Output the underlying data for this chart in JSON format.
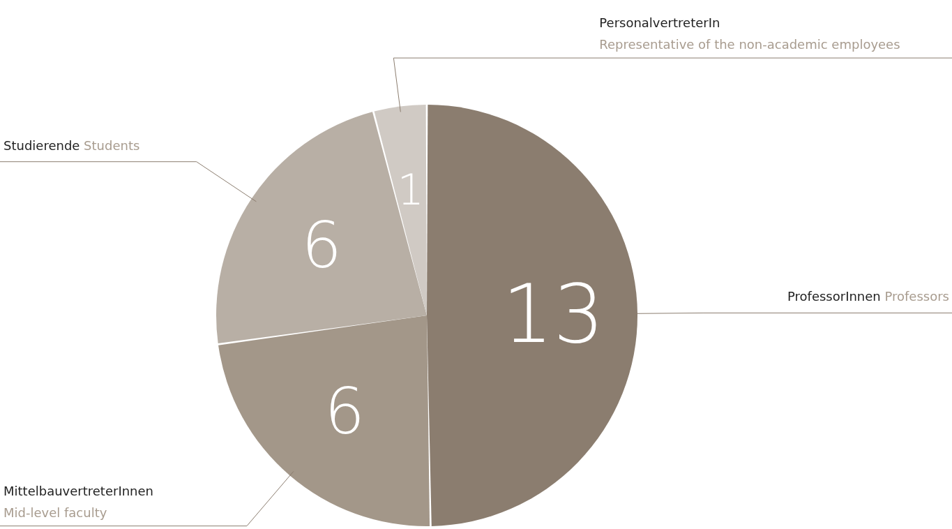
{
  "chart_data": {
    "type": "pie",
    "categories": [
      "ProfessorInnen\nProfessors",
      "MittelbauvertreterInnen\nMid-level faculty",
      "Studierende\nStudents",
      "PersonalvertreterIn\nRepresentative of the non-academic employees"
    ],
    "values": [
      13,
      6,
      6,
      1
    ],
    "colors": [
      "#8b7d6f",
      "#a39789",
      "#b8afa5",
      "#d0cac4"
    ],
    "data_labels": true
  }
}
